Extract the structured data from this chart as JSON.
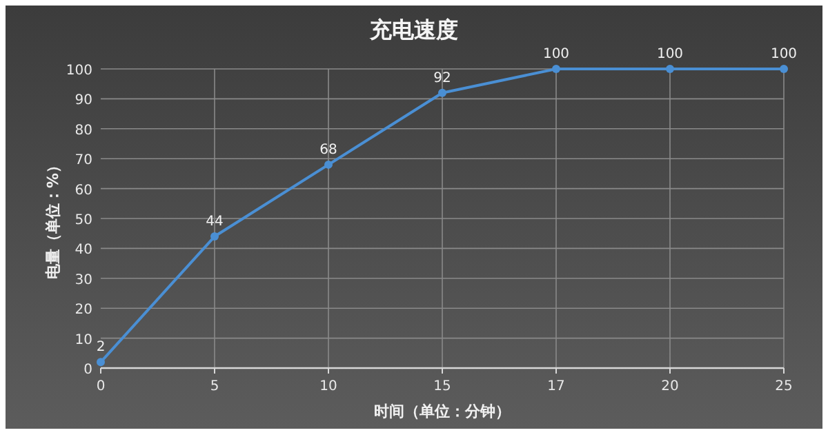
{
  "chart_data": {
    "type": "line",
    "title": "充电速度",
    "xlabel": "时间（单位：分钟）",
    "ylabel": "电量（单位：%）",
    "categories": [
      "0",
      "5",
      "10",
      "15",
      "17",
      "20",
      "25"
    ],
    "values": [
      2,
      44,
      68,
      92,
      100,
      100,
      100
    ],
    "color": "#4a8fd4",
    "ylim": [
      0,
      100
    ],
    "yticks": [
      0,
      10,
      20,
      30,
      40,
      50,
      60,
      70,
      80,
      90,
      100
    ],
    "grid": true,
    "marker": "circle",
    "data_labels": true
  }
}
